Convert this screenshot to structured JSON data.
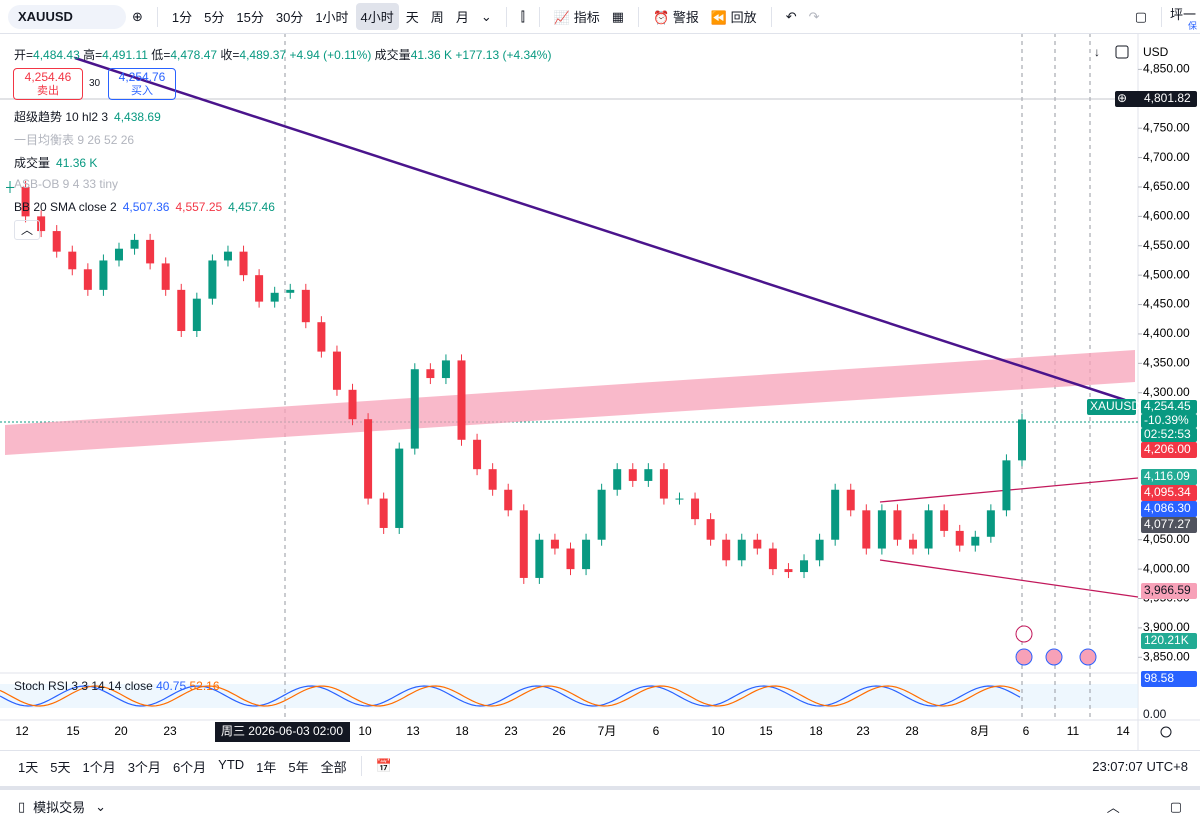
{
  "toolbar": {
    "symbol": "XAUUSD",
    "intervals": [
      "1分",
      "5分",
      "15分",
      "30分",
      "1小时",
      "4小时",
      "天",
      "周",
      "月"
    ],
    "selected_interval": 5,
    "indicators": "指标",
    "alerts": "警报",
    "replay": "回放",
    "account": "坪一",
    "account_sub": "保"
  },
  "legend": {
    "open_label": "开",
    "open": "4,484.43",
    "high_label": "高",
    "high": "4,491.11",
    "low_label": "低",
    "low": "4,478.47",
    "close_label": "收",
    "close": "4,489.37",
    "change": "+4.94 (+0.11%)",
    "volume_label": "成交量",
    "volume": "41.36 K",
    "volume_change": "+177.13 (+4.34%)"
  },
  "trade": {
    "sell_price": "4,254.46",
    "sell": "卖出",
    "spread": "30",
    "buy_price": "4,254.76",
    "buy": "买入"
  },
  "indicators": [
    {
      "name": "超级趋势 10 hl2 3",
      "values": [
        "4,438.69"
      ]
    },
    {
      "name": "一目均衡表 9 26 52 26",
      "values": []
    },
    {
      "name": "成交量",
      "values": [
        "41.36 K"
      ]
    },
    {
      "name": "ASB-OB 9 4 33 tiny",
      "values": []
    },
    {
      "name": "BB 20 SMA close 2",
      "values": [
        "4,507.36",
        "4,557.25",
        "4,457.46"
      ]
    }
  ],
  "currency": "USD",
  "chart_data": {
    "type": "candlestick",
    "up_color": "#089981",
    "down_color": "#f23645",
    "close": [
      4650,
      4600,
      4575,
      4540,
      4510,
      4475,
      4525,
      4545,
      4560,
      4520,
      4475,
      4405,
      4460,
      4525,
      4540,
      4500,
      4455,
      4470,
      4475,
      4420,
      4370,
      4305,
      4255,
      4120,
      4070,
      4205,
      4340,
      4325,
      4355,
      4220,
      4170,
      4135,
      4100,
      3985,
      4050,
      4035,
      4000,
      4050,
      4135,
      4170,
      4150,
      4170,
      4120,
      4120,
      4085,
      4050,
      4015,
      4050,
      4035,
      4000,
      3995,
      4015,
      4050,
      4135,
      4100,
      4035,
      4100,
      4050,
      4035,
      4100,
      4065,
      4040,
      4055,
      4100,
      4185,
      4254.45
    ],
    "ylim": [
      3825,
      4900
    ],
    "yticks": [
      {
        "value": 4850,
        "label": "4,850.00"
      },
      {
        "value": 4750,
        "label": "4,750.00"
      },
      {
        "value": 4700,
        "label": "4,700.00"
      },
      {
        "value": 4650,
        "label": "4,650.00"
      },
      {
        "value": 4600,
        "label": "4,600.00"
      },
      {
        "value": 4550,
        "label": "4,550.00"
      },
      {
        "value": 4500,
        "label": "4,500.00"
      },
      {
        "value": 4450,
        "label": "4,450.00"
      },
      {
        "value": 4400,
        "label": "4,400.00"
      },
      {
        "value": 4350,
        "label": "4,350.00"
      },
      {
        "value": 4300,
        "label": "4,300.00"
      },
      {
        "value": 4050,
        "label": "4,050.00"
      },
      {
        "value": 4000,
        "label": "4,000.00"
      },
      {
        "value": 3950,
        "label": "3,950.00"
      },
      {
        "value": 3900,
        "label": "3,900.00"
      },
      {
        "value": 3850,
        "label": "3,850.00"
      }
    ]
  },
  "price_badges": [
    {
      "text": "4,801.82",
      "color": "#131722"
    },
    {
      "text": "XAUUSD",
      "color": "#089981"
    },
    {
      "text": "4,254.45",
      "color": "#089981"
    },
    {
      "text": "-10.39%",
      "color": "#089981"
    },
    {
      "text": "02:52:53",
      "color": "#089981"
    },
    {
      "text": "4,206.00",
      "color": "#f23645"
    },
    {
      "text": "4,116.09",
      "color": "#22ab94"
    },
    {
      "text": "4,095.34",
      "color": "#f23645"
    },
    {
      "text": "4,086.30",
      "color": "#2962ff"
    },
    {
      "text": "4,077.27",
      "color": "#50535e"
    },
    {
      "text": "3,966.59",
      "color": "#f7a1b8"
    },
    {
      "text": "120.21K",
      "color": "#22ab94"
    },
    {
      "text": "98.58",
      "color": "#2962ff"
    }
  ],
  "stoch": {
    "name": "Stoch RSI 3 3 14 14 close",
    "k": "40.75",
    "d": "52.16",
    "scale": "0.00"
  },
  "date_axis": [
    "12",
    "15",
    "20",
    "23",
    "10",
    "13",
    "18",
    "23",
    "26",
    "7月",
    "6",
    "10",
    "15",
    "18",
    "23",
    "28",
    "8月",
    "6",
    "11",
    "14"
  ],
  "crosshair_label": "周三 2026-06-03   02:00",
  "ranges": [
    "1天",
    "5天",
    "1个月",
    "3个月",
    "6个月",
    "YTD",
    "1年",
    "5年",
    "全部"
  ],
  "clock": "23:07:07 UTC+8",
  "footer": "模拟交易"
}
